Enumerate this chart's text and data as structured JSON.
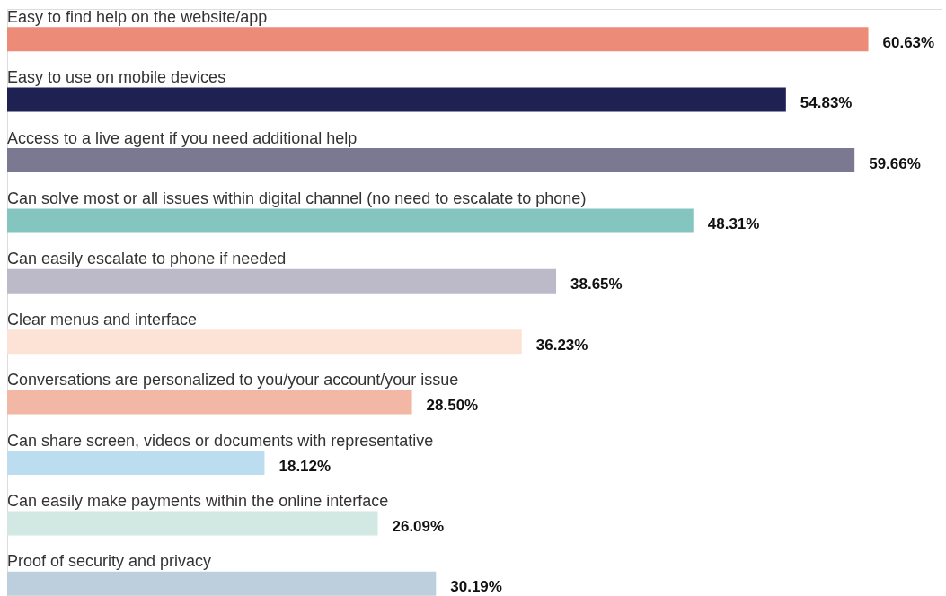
{
  "chart_data": {
    "type": "bar",
    "orientation": "horizontal",
    "categories": [
      "Easy to find help on the website/app",
      "Easy to use on mobile devices",
      "Access to a live agent if you need additional help",
      "Can solve most or all issues within digital channel (no need to escalate to phone)",
      "Can easily escalate to phone if needed",
      "Clear menus and interface",
      "Conversations are personalized to you/your account/your issue",
      "Can share screen, videos or documents with representative",
      "Can easily make payments within the online interface",
      "Proof of security and privacy"
    ],
    "values": [
      60.63,
      54.83,
      59.66,
      48.31,
      38.65,
      36.23,
      28.5,
      18.12,
      26.09,
      30.19
    ],
    "value_labels": [
      "60.63%",
      "54.83%",
      "59.66%",
      "48.31%",
      "38.65%",
      "36.23%",
      "28.50%",
      "18.12%",
      "26.09%",
      "30.19%"
    ],
    "colors": [
      "#ec8b78",
      "#1e2152",
      "#7b7891",
      "#84c6bf",
      "#bcbac9",
      "#fde3d6",
      "#f2b7a5",
      "#bcdcef",
      "#d2e8e2",
      "#bdcfdc"
    ]
  }
}
